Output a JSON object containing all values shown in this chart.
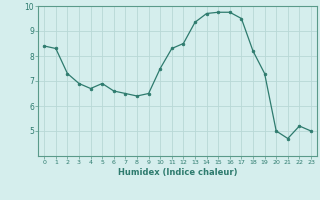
{
  "x": [
    0,
    1,
    2,
    3,
    4,
    5,
    6,
    7,
    8,
    9,
    10,
    11,
    12,
    13,
    14,
    15,
    16,
    17,
    18,
    19,
    20,
    21,
    22,
    23
  ],
  "y": [
    8.4,
    8.3,
    7.3,
    6.9,
    6.7,
    6.9,
    6.6,
    6.5,
    6.4,
    6.5,
    7.5,
    8.3,
    8.5,
    9.35,
    9.7,
    9.75,
    9.75,
    9.5,
    8.2,
    7.3,
    5.0,
    4.7,
    5.2,
    5.0
  ],
  "xlabel": "Humidex (Indice chaleur)",
  "ylim": [
    4,
    10
  ],
  "xlim": [
    -0.5,
    23.5
  ],
  "yticks": [
    5,
    6,
    7,
    8,
    9,
    10
  ],
  "xticks": [
    0,
    1,
    2,
    3,
    4,
    5,
    6,
    7,
    8,
    9,
    10,
    11,
    12,
    13,
    14,
    15,
    16,
    17,
    18,
    19,
    20,
    21,
    22,
    23
  ],
  "line_color": "#2e7b6e",
  "marker_color": "#2e7b6e",
  "bg_color": "#d5eeed",
  "grid_color": "#b8d8d6",
  "spine_color": "#5a9a8a"
}
